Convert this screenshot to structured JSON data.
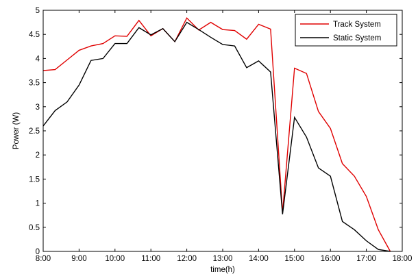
{
  "chart_data": {
    "type": "line",
    "title": "",
    "xlabel": "time(h)",
    "ylabel": "Power (W)",
    "x_unit": "hours",
    "xlim": [
      "8:00",
      "18:00"
    ],
    "ylim": [
      0,
      5
    ],
    "x_tick_labels": [
      "8:00",
      "9:00",
      "10:00",
      "11:00",
      "12:00",
      "13:00",
      "14:00",
      "15:00",
      "16:00",
      "17:00",
      "18:00"
    ],
    "y_tick_labels": [
      "0",
      "0.5",
      "1",
      "1.5",
      "2",
      "2.5",
      "3",
      "3.5",
      "4",
      "4.5",
      "5"
    ],
    "y_ticks": [
      0,
      0.5,
      1,
      1.5,
      2,
      2.5,
      3,
      3.5,
      4,
      4.5,
      5
    ],
    "grid": false,
    "legend_position": "top-right",
    "x": [
      "8:00",
      "8:20",
      "8:40",
      "9:00",
      "9:20",
      "9:40",
      "10:00",
      "10:20",
      "10:40",
      "11:00",
      "11:20",
      "11:40",
      "12:00",
      "12:20",
      "12:40",
      "13:00",
      "13:20",
      "13:40",
      "14:00",
      "14:20",
      "14:40",
      "15:00",
      "15:20",
      "15:40",
      "16:00",
      "16:20",
      "16:40",
      "17:00",
      "17:20",
      "17:40"
    ],
    "series": [
      {
        "name": "Track System",
        "color": "#e00000",
        "values": [
          3.75,
          3.77,
          3.97,
          4.17,
          4.26,
          4.31,
          4.47,
          4.46,
          4.79,
          4.47,
          4.62,
          4.35,
          4.84,
          4.59,
          4.75,
          4.6,
          4.58,
          4.4,
          4.71,
          4.61,
          0.8,
          3.8,
          3.69,
          2.9,
          2.55,
          1.82,
          1.56,
          1.14,
          0.45,
          0.0
        ]
      },
      {
        "name": "Static System",
        "color": "#000000",
        "values": [
          2.6,
          2.92,
          3.1,
          3.45,
          3.96,
          4.0,
          4.31,
          4.31,
          4.64,
          4.49,
          4.62,
          4.35,
          4.75,
          4.6,
          4.44,
          4.29,
          4.26,
          3.81,
          3.95,
          3.72,
          0.77,
          2.78,
          2.37,
          1.73,
          1.56,
          0.62,
          0.45,
          0.22,
          0.04,
          0.0
        ]
      }
    ]
  }
}
